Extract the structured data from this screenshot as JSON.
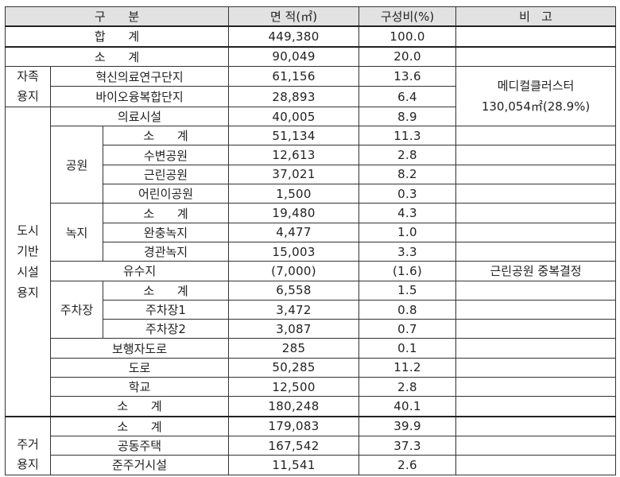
{
  "headers": {
    "category": "구      분",
    "area": "면 적(㎡)",
    "ratio": "구성비(%)",
    "note": "비   고"
  },
  "total": {
    "label": "합      계",
    "area": "449,380",
    "ratio": "100.0"
  },
  "self_land": {
    "label_l1": "자족",
    "label_l2": "용지",
    "subtotal": {
      "label": "소      계",
      "area": "90,049",
      "ratio": "20.0"
    },
    "rows": [
      {
        "label": "혁신의료연구단지",
        "area": "61,156",
        "ratio": "13.6"
      },
      {
        "label": "바이오융복합단지",
        "area": "28,893",
        "ratio": "6.4"
      }
    ]
  },
  "medical_cluster_note": {
    "line1": "메디컬클러스터",
    "line2": "130,054㎡(28.9%)"
  },
  "urban": {
    "label_l1": "도시",
    "label_l2": "기반",
    "label_l3": "시설",
    "label_l4": "용지",
    "medical": {
      "label": "의료시설",
      "area": "40,005",
      "ratio": "8.9"
    },
    "park": {
      "label": "공원",
      "subtotal": {
        "label": "소      계",
        "area": "51,134",
        "ratio": "11.3"
      },
      "rows": [
        {
          "label": "수변공원",
          "area": "12,613",
          "ratio": "2.8"
        },
        {
          "label": "근린공원",
          "area": "37,021",
          "ratio": "8.2"
        },
        {
          "label": "어린이공원",
          "area": "1,500",
          "ratio": "0.3"
        }
      ]
    },
    "green": {
      "label": "녹지",
      "subtotal": {
        "label": "소      계",
        "area": "19,480",
        "ratio": "4.3"
      },
      "rows": [
        {
          "label": "완충녹지",
          "area": "4,477",
          "ratio": "1.0"
        },
        {
          "label": "경관녹지",
          "area": "15,003",
          "ratio": "3.3"
        }
      ]
    },
    "reservoir": {
      "label": "유수지",
      "area": "(7,000)",
      "ratio": "(1.6)",
      "note": "근린공원 중복결정"
    },
    "parking": {
      "label": "주차장",
      "subtotal": {
        "label": "소      계",
        "area": "6,558",
        "ratio": "1.5"
      },
      "rows": [
        {
          "label": "주차장1",
          "area": "3,472",
          "ratio": "0.8"
        },
        {
          "label": "주차장2",
          "area": "3,087",
          "ratio": "0.7"
        }
      ]
    },
    "pedestrian": {
      "label": "보행자도로",
      "area": "285",
      "ratio": "0.1"
    },
    "road": {
      "label": "도로",
      "area": "50,285",
      "ratio": "11.2"
    },
    "school": {
      "label": "학교",
      "area": "12,500",
      "ratio": "2.8"
    },
    "subtotal": {
      "label": "소      계",
      "area": "180,248",
      "ratio": "40.1"
    }
  },
  "residential": {
    "label_l1": "주거",
    "label_l2": "용지",
    "subtotal": {
      "label": "소      계",
      "area": "179,083",
      "ratio": "39.9"
    },
    "rows": [
      {
        "label": "공동주택",
        "area": "167,542",
        "ratio": "37.3"
      },
      {
        "label": "준주거시설",
        "area": "11,541",
        "ratio": "2.6"
      }
    ]
  }
}
